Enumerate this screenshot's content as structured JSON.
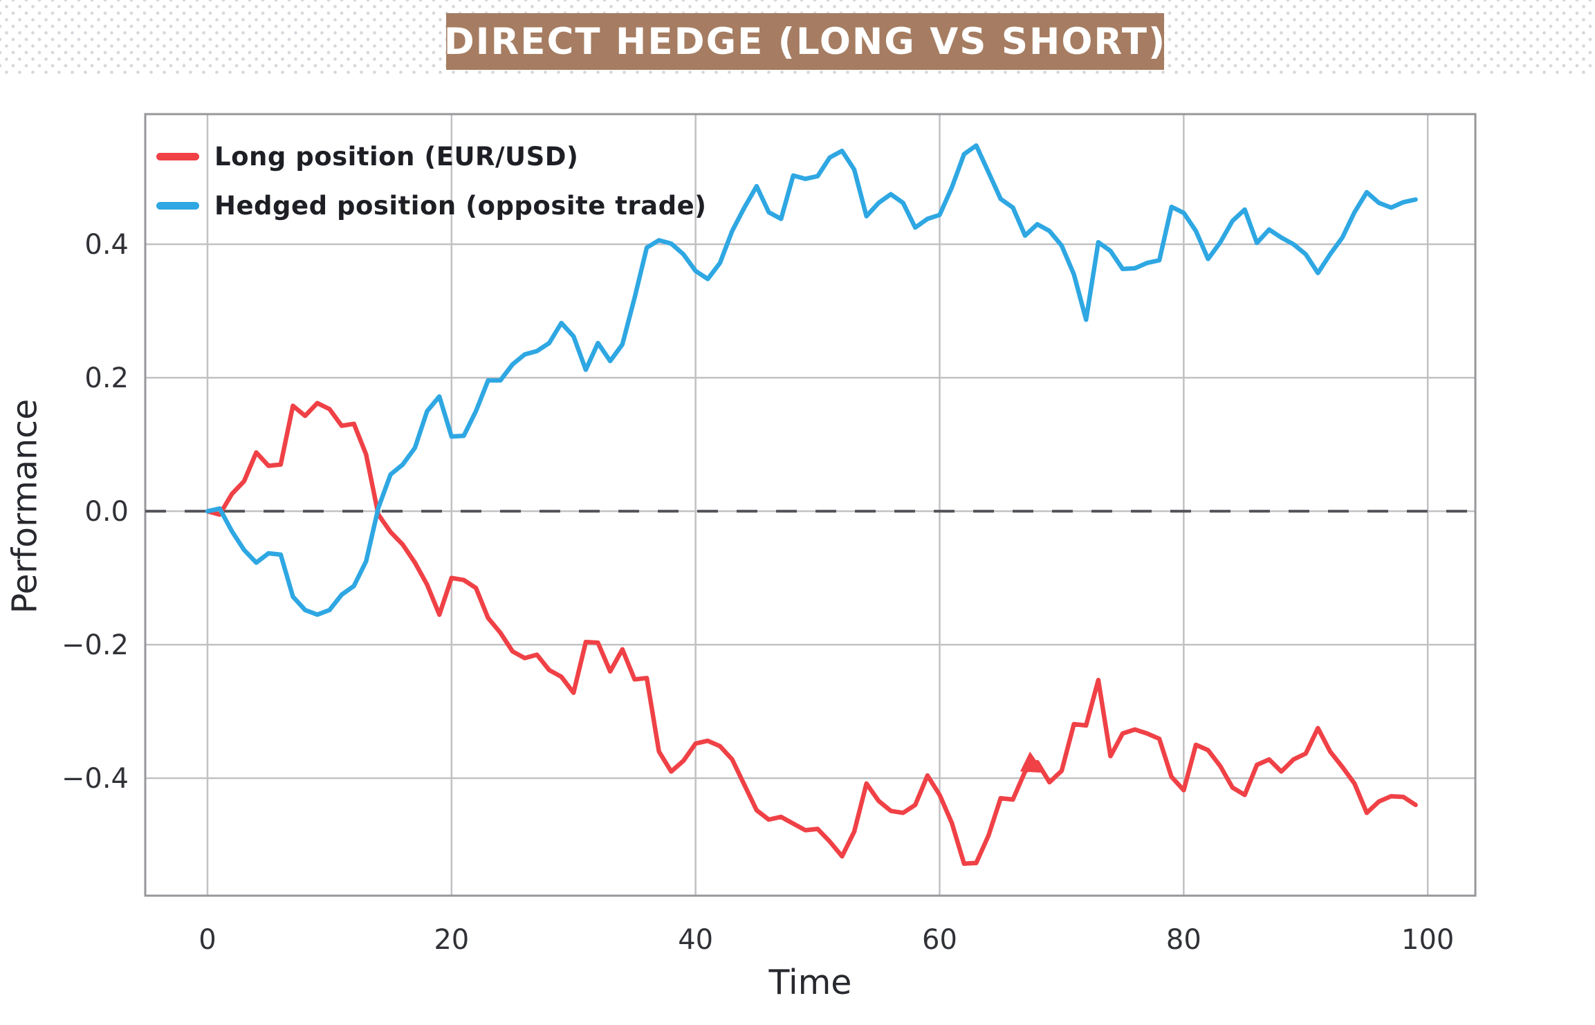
{
  "page": {
    "background_color": "#ffffff",
    "dot_pattern_color": "#d7d8dc"
  },
  "title": {
    "text": "DIRECT HEDGE (LONG VS SHORT)",
    "bg_color": "#a67d62",
    "text_color": "#ffffff"
  },
  "chart_data": {
    "type": "line",
    "title": "DIRECT HEDGE (LONG VS SHORT)",
    "xlabel": "Time",
    "ylabel": "Performance",
    "xlim": [
      -5.1,
      103.9
    ],
    "ylim": [
      -0.576,
      0.595
    ],
    "grid": true,
    "grid_color": "#c1c1c4",
    "spine_color": "#97979b",
    "tick_text_color": "#303237",
    "zero_line": {
      "value": 0.0,
      "style": "dashed",
      "color": "#53555a"
    },
    "legend_position": "upper-left",
    "x_ticks": [
      {
        "value": 0,
        "label": "0"
      },
      {
        "value": 20,
        "label": "20"
      },
      {
        "value": 40,
        "label": "40"
      },
      {
        "value": 60,
        "label": "60"
      },
      {
        "value": 80,
        "label": "80"
      },
      {
        "value": 100,
        "label": "100"
      }
    ],
    "y_ticks": [
      {
        "value": 0.4,
        "label": "0.4"
      },
      {
        "value": 0.2,
        "label": "0.2"
      },
      {
        "value": 0.0,
        "label": "0.0"
      },
      {
        "value": -0.2,
        "label": "−0.2"
      },
      {
        "value": -0.4,
        "label": "−0.4"
      }
    ],
    "x_start": 0,
    "x_step": 1,
    "series": [
      {
        "name": "Long position (EUR/USD)",
        "color": "#ef4146",
        "values": [
          0.0,
          -0.005,
          0.026,
          0.045,
          0.088,
          0.068,
          0.07,
          0.158,
          0.143,
          0.162,
          0.153,
          0.128,
          0.131,
          0.085,
          -0.005,
          -0.031,
          -0.05,
          -0.077,
          -0.11,
          -0.155,
          -0.1,
          -0.103,
          -0.115,
          -0.16,
          -0.182,
          -0.21,
          -0.22,
          -0.215,
          -0.238,
          -0.248,
          -0.272,
          -0.196,
          -0.197,
          -0.24,
          -0.207,
          -0.252,
          -0.25,
          -0.36,
          -0.39,
          -0.374,
          -0.348,
          -0.344,
          -0.352,
          -0.372,
          -0.41,
          -0.448,
          -0.462,
          -0.458,
          -0.468,
          -0.478,
          -0.476,
          -0.495,
          -0.517,
          -0.48,
          -0.408,
          -0.434,
          -0.449,
          -0.452,
          -0.44,
          -0.396,
          -0.425,
          -0.467,
          -0.528,
          -0.527,
          -0.486,
          -0.43,
          -0.432,
          -0.39,
          -0.376,
          -0.406,
          -0.389,
          -0.319,
          -0.321,
          -0.253,
          -0.367,
          -0.333,
          -0.327,
          -0.333,
          -0.341,
          -0.398,
          -0.418,
          -0.35,
          -0.358,
          -0.382,
          -0.414,
          -0.425,
          -0.38,
          -0.372,
          -0.39,
          -0.372,
          -0.363,
          -0.325,
          -0.36,
          -0.383,
          -0.408,
          -0.452,
          -0.435,
          -0.427,
          -0.428,
          -0.44
        ]
      },
      {
        "name": "Hedged position (opposite trade)",
        "color": "#2ea7e2",
        "values": [
          0.0,
          0.004,
          -0.03,
          -0.058,
          -0.077,
          -0.063,
          -0.065,
          -0.128,
          -0.148,
          -0.155,
          -0.148,
          -0.125,
          -0.112,
          -0.075,
          0.005,
          0.055,
          0.07,
          0.095,
          0.15,
          0.172,
          0.112,
          0.113,
          0.15,
          0.196,
          0.196,
          0.22,
          0.235,
          0.24,
          0.252,
          0.282,
          0.262,
          0.212,
          0.252,
          0.225,
          0.25,
          0.32,
          0.395,
          0.406,
          0.401,
          0.385,
          0.36,
          0.348,
          0.372,
          0.42,
          0.455,
          0.487,
          0.448,
          0.438,
          0.503,
          0.498,
          0.502,
          0.53,
          0.54,
          0.512,
          0.442,
          0.462,
          0.475,
          0.462,
          0.425,
          0.438,
          0.444,
          0.485,
          0.535,
          0.548,
          0.508,
          0.468,
          0.455,
          0.413,
          0.43,
          0.42,
          0.398,
          0.355,
          0.287,
          0.403,
          0.39,
          0.363,
          0.364,
          0.372,
          0.376,
          0.456,
          0.447,
          0.42,
          0.378,
          0.403,
          0.435,
          0.452,
          0.402,
          0.422,
          0.41,
          0.4,
          0.385,
          0.357,
          0.385,
          0.41,
          0.448,
          0.478,
          0.462,
          0.455,
          0.463,
          0.467
        ]
      }
    ],
    "artifact_wedge": {
      "series": "Long position (EUR/USD)",
      "points": [
        [
          66.6,
          -0.39
        ],
        [
          67.4,
          -0.36
        ],
        [
          68.6,
          -0.392
        ]
      ]
    },
    "line_width": 6.5
  }
}
